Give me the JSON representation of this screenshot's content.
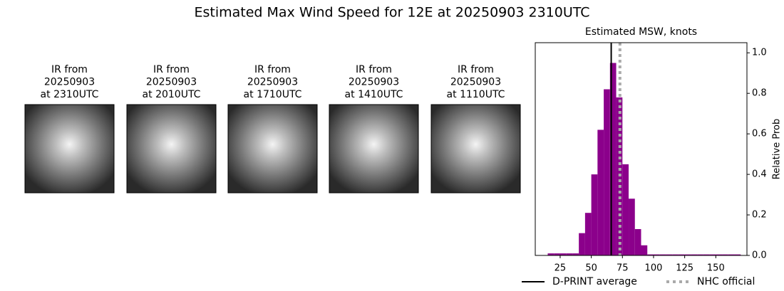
{
  "title": "Estimated Max Wind Speed for 12E at 20250903 2310UTC",
  "panels": [
    {
      "lines": [
        "IR from",
        "20250903",
        "at 2310UTC"
      ]
    },
    {
      "lines": [
        "IR from",
        "20250903",
        "at 2010UTC"
      ]
    },
    {
      "lines": [
        "IR from",
        "20250903",
        "at 1710UTC"
      ]
    },
    {
      "lines": [
        "IR from",
        "20250903",
        "at 1410UTC"
      ]
    },
    {
      "lines": [
        "IR from",
        "20250903",
        "at 1110UTC"
      ]
    }
  ],
  "chart_data": {
    "type": "histogram",
    "title": "Estimated MSW, knots",
    "y_label": "Relative Prob",
    "color": "#8b008b",
    "bins": [
      15,
      20,
      25,
      30,
      35,
      40,
      45,
      50,
      55,
      60,
      65,
      70,
      75,
      80,
      85,
      90,
      95,
      100,
      105,
      110,
      115,
      120,
      125,
      130,
      135,
      140,
      145,
      150,
      155,
      160,
      165,
      170
    ],
    "counts": [
      0.01,
      0.01,
      0.01,
      0.01,
      0.01,
      0.11,
      0.21,
      0.4,
      0.62,
      0.82,
      0.95,
      0.78,
      0.45,
      0.28,
      0.13,
      0.05,
      0.005,
      0.005,
      0.005,
      0.005,
      0.005,
      0.005,
      0.005,
      0.005,
      0.005,
      0.005,
      0.005,
      0.005,
      0.005,
      0.005,
      0.005
    ],
    "xlim": [
      5,
      175
    ],
    "ylim": [
      0,
      1.05
    ],
    "xticks": [
      25,
      50,
      75,
      100,
      125,
      150
    ],
    "yticks": [
      {
        "value": 0,
        "label": "0.0"
      },
      {
        "value": 0.2,
        "label": "0.2"
      },
      {
        "value": 0.4,
        "label": "0.4"
      },
      {
        "value": 0.6,
        "label": "0.6"
      },
      {
        "value": 0.8,
        "label": "0.8"
      },
      {
        "value": 1,
        "label": "1.0"
      }
    ],
    "lines": [
      {
        "name": "D-PRINT average",
        "value": 66,
        "color": "#000000",
        "style": "solid"
      },
      {
        "name": "NHC official",
        "value": 73,
        "color": "#aaaaaa",
        "style": "dotted"
      }
    ],
    "legend": "bottom"
  }
}
